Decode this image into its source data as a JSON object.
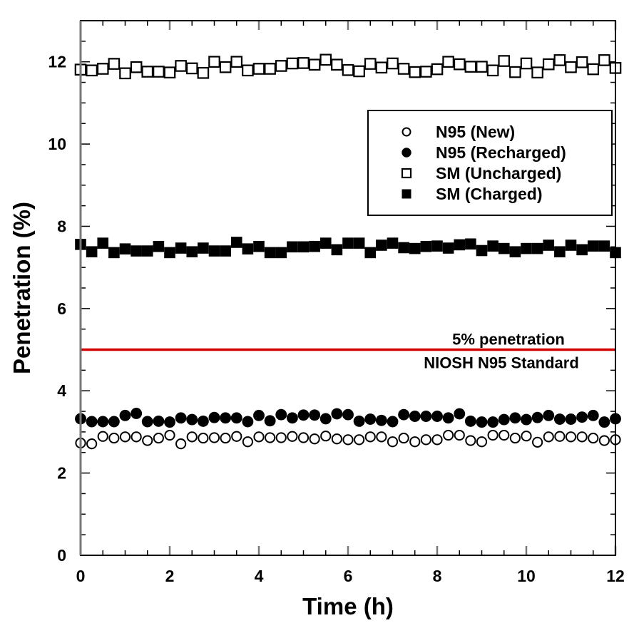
{
  "chart_data": {
    "type": "scatter",
    "title": "",
    "xlabel": "Time (h)",
    "ylabel": "Penetration (%)",
    "xlim": [
      0,
      12
    ],
    "ylim": [
      0,
      13
    ],
    "xticks": [
      0,
      2,
      4,
      6,
      8,
      10,
      12
    ],
    "xtick_labels": [
      "0",
      "2",
      "4",
      "6",
      "8",
      "10",
      "12"
    ],
    "yticks": [
      0,
      2,
      4,
      6,
      8,
      10,
      12
    ],
    "ytick_labels": [
      "0",
      "2",
      "4",
      "6",
      "8",
      "10",
      "12"
    ],
    "x_minor_step": 0.5,
    "y_minor_step": 0.5,
    "grid": false,
    "legend_position": "top-right",
    "x": [
      0,
      0.25,
      0.5,
      0.75,
      1,
      1.25,
      1.5,
      1.75,
      2,
      2.25,
      2.5,
      2.75,
      3,
      3.25,
      3.5,
      3.75,
      4,
      4.25,
      4.5,
      4.75,
      5,
      5.25,
      5.5,
      5.75,
      6,
      6.25,
      6.5,
      6.75,
      7,
      7.25,
      7.5,
      7.75,
      8,
      8.25,
      8.5,
      8.75,
      9,
      9.25,
      9.5,
      9.75,
      10,
      10.25,
      10.5,
      10.75,
      11,
      11.25,
      11.5,
      11.75,
      12
    ],
    "series": [
      {
        "name": "N95 (New)",
        "marker": "open-circle",
        "values": [
          2.73,
          2.71,
          2.89,
          2.85,
          2.88,
          2.88,
          2.79,
          2.85,
          2.92,
          2.71,
          2.88,
          2.85,
          2.86,
          2.85,
          2.89,
          2.76,
          2.88,
          2.86,
          2.86,
          2.89,
          2.86,
          2.83,
          2.9,
          2.83,
          2.81,
          2.81,
          2.88,
          2.88,
          2.76,
          2.85,
          2.76,
          2.81,
          2.81,
          2.92,
          2.92,
          2.79,
          2.76,
          2.92,
          2.92,
          2.85,
          2.9,
          2.75,
          2.88,
          2.89,
          2.88,
          2.88,
          2.85,
          2.79,
          2.81
        ]
      },
      {
        "name": "N95 (Recharged)",
        "marker": "filled-circle",
        "values": [
          3.32,
          3.25,
          3.25,
          3.25,
          3.4,
          3.45,
          3.25,
          3.26,
          3.24,
          3.34,
          3.3,
          3.26,
          3.35,
          3.34,
          3.34,
          3.25,
          3.4,
          3.27,
          3.42,
          3.34,
          3.41,
          3.41,
          3.32,
          3.44,
          3.42,
          3.26,
          3.31,
          3.28,
          3.25,
          3.42,
          3.38,
          3.38,
          3.38,
          3.34,
          3.44,
          3.26,
          3.24,
          3.24,
          3.3,
          3.34,
          3.3,
          3.35,
          3.4,
          3.31,
          3.31,
          3.36,
          3.4,
          3.24,
          3.32
        ]
      },
      {
        "name": "SM (Uncharged)",
        "marker": "open-square",
        "values": [
          11.81,
          11.79,
          11.83,
          11.95,
          11.72,
          11.87,
          11.76,
          11.76,
          11.74,
          11.9,
          11.84,
          11.73,
          12.0,
          11.87,
          12.0,
          11.79,
          11.83,
          11.83,
          11.9,
          11.96,
          11.97,
          11.93,
          12.05,
          11.93,
          11.8,
          11.77,
          11.95,
          11.86,
          11.96,
          11.83,
          11.75,
          11.76,
          11.82,
          12.0,
          11.94,
          11.88,
          11.88,
          11.79,
          12.02,
          11.75,
          11.96,
          11.74,
          11.94,
          12.04,
          11.87,
          11.99,
          11.82,
          12.04,
          11.85
        ]
      },
      {
        "name": "SM (Charged)",
        "marker": "filled-square",
        "values": [
          7.56,
          7.38,
          7.59,
          7.36,
          7.45,
          7.4,
          7.4,
          7.51,
          7.36,
          7.47,
          7.38,
          7.47,
          7.4,
          7.4,
          7.61,
          7.45,
          7.51,
          7.36,
          7.36,
          7.5,
          7.5,
          7.51,
          7.59,
          7.43,
          7.59,
          7.59,
          7.36,
          7.54,
          7.59,
          7.48,
          7.46,
          7.51,
          7.52,
          7.47,
          7.55,
          7.57,
          7.41,
          7.52,
          7.46,
          7.38,
          7.46,
          7.46,
          7.54,
          7.38,
          7.54,
          7.43,
          7.52,
          7.52,
          7.36
        ]
      }
    ],
    "reference_line": {
      "y": 5,
      "color": "#d40000",
      "label_line1": "5% penetration",
      "label_line2": "NIOSH N95 Standard"
    }
  }
}
